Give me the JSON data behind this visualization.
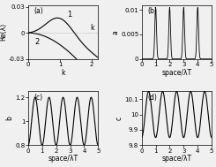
{
  "panel_a": {
    "label": "(a)",
    "xlabel": "k",
    "ylabel": "Re(λ)",
    "xlim": [
      0,
      2.2
    ],
    "ylim": [
      -0.03,
      0.032
    ],
    "xticks": [
      0,
      1,
      2
    ],
    "yticks": [
      -0.03,
      0,
      0.03
    ],
    "ytick_labels": [
      "-0.03",
      "0",
      "0.03"
    ]
  },
  "panel_b": {
    "label": "(b)",
    "xlabel": "space/λT",
    "ylabel": "a",
    "xlim": [
      0,
      5
    ],
    "ylim": [
      0,
      0.011
    ],
    "xticks": [
      0,
      1,
      2,
      3,
      4,
      5
    ],
    "yticks": [
      0,
      0.005,
      0.01
    ],
    "ytick_labels": [
      "0",
      "0.005",
      "0.01"
    ]
  },
  "panel_c": {
    "label": "(c)",
    "xlabel": "space/λT",
    "ylabel": "b",
    "xlim": [
      0,
      5
    ],
    "ylim": [
      0.8,
      1.25
    ],
    "xticks": [
      0,
      1,
      2,
      3,
      4,
      5
    ],
    "yticks": [
      0.8,
      1.0,
      1.2
    ],
    "ytick_labels": [
      "0.8",
      "1",
      "1.2"
    ]
  },
  "panel_d": {
    "label": "(d)",
    "xlabel": "space/λT",
    "ylabel": "c",
    "xlim": [
      0,
      5
    ],
    "ylim": [
      9.8,
      10.15
    ],
    "xticks": [
      0,
      1,
      2,
      3,
      4,
      5
    ],
    "yticks": [
      9.8,
      9.9,
      10.0,
      10.1
    ],
    "ytick_labels": [
      "9.8",
      "9.9",
      "10",
      "10.1"
    ]
  },
  "line_color": "#000000",
  "bg_color": "#f0f0f0",
  "fontsize": 5.5
}
